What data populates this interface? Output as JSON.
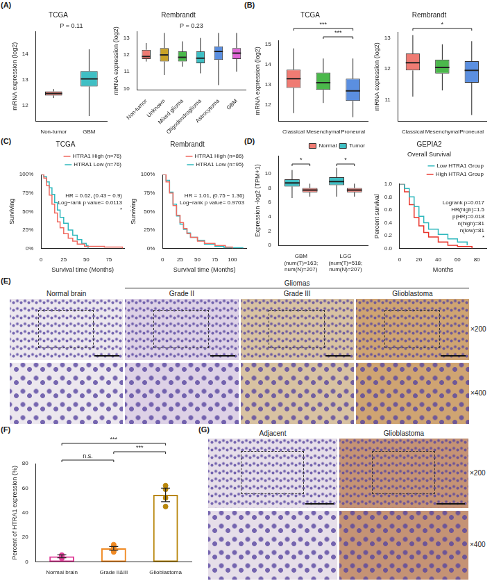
{
  "panel_labels": [
    "(A)",
    "(B)",
    "(C)",
    "(D)",
    "(E)",
    "(F)",
    "(G)"
  ],
  "chart_data": [
    {
      "type": "boxplot",
      "title": "TCGA",
      "y_label": "mRNA expression (log2)",
      "categories": [
        "Non-tumor",
        "GBM"
      ],
      "colors": [
        "#ef7b73",
        "#3fbfc4"
      ],
      "boxes": [
        {
          "min": 12.3,
          "q1": 12.4,
          "median": 12.48,
          "q3": 12.56,
          "max": 12.65
        },
        {
          "min": 11.6,
          "q1": 12.75,
          "median": 13.05,
          "q3": 13.35,
          "max": 14.2
        }
      ],
      "ylim": [
        11.4,
        14.9
      ],
      "yticks": [
        12,
        13,
        14
      ],
      "grid": false,
      "annotations": [
        "P = 0.11"
      ]
    },
    {
      "type": "boxplot",
      "title": "Rembrandt",
      "y_label": "mRNA expression (log2)",
      "categories": [
        "Non-tumor",
        "Unknown",
        "Mixed glioma",
        "Oligodendroglioma",
        "Astrocytoma",
        "GBM"
      ],
      "colors": [
        "#ef7b73",
        "#c9a227",
        "#4bb84b",
        "#3fbfc4",
        "#5b8fe0",
        "#e066d6"
      ],
      "boxes": [
        {
          "min": 11.6,
          "q1": 11.75,
          "median": 11.9,
          "q3": 12.3,
          "max": 12.7
        },
        {
          "min": 10.8,
          "q1": 11.6,
          "median": 12.0,
          "q3": 12.4,
          "max": 13.3
        },
        {
          "min": 11.3,
          "q1": 11.6,
          "median": 11.85,
          "q3": 12.2,
          "max": 12.8
        },
        {
          "min": 10.9,
          "q1": 11.5,
          "median": 11.8,
          "q3": 12.2,
          "max": 13.0
        },
        {
          "min": 10.2,
          "q1": 11.7,
          "median": 12.2,
          "q3": 12.5,
          "max": 13.3
        },
        {
          "min": 11.0,
          "q1": 11.75,
          "median": 12.1,
          "q3": 12.4,
          "max": 13.3
        }
      ],
      "ylim": [
        9.9,
        13.4
      ],
      "yticks": [
        10,
        11,
        12,
        13
      ],
      "grid": false,
      "annotations": [
        "P = 0.23"
      ]
    },
    {
      "type": "boxplot",
      "title": "TCGA",
      "y_label": "mRNA expression (log2)",
      "categories": [
        "Classical",
        "Mesenchymal",
        "Proneural"
      ],
      "colors": [
        "#ef7b73",
        "#4bb84b",
        "#5b8fe0"
      ],
      "boxes": [
        {
          "min": 11.6,
          "q1": 12.85,
          "median": 13.3,
          "q3": 13.75,
          "max": 14.8
        },
        {
          "min": 12.1,
          "q1": 12.75,
          "median": 13.1,
          "q3": 13.6,
          "max": 14.3
        },
        {
          "min": 11.4,
          "q1": 12.2,
          "median": 12.7,
          "q3": 13.3,
          "max": 14.3
        }
      ],
      "ylim": [
        11.2,
        15.2
      ],
      "yticks": [
        12,
        13,
        14,
        15
      ],
      "grid": false,
      "brackets": [
        {
          "text": "***",
          "from": "Mesenchymal",
          "to": "Proneural"
        },
        {
          "text": "***",
          "from": "Classical",
          "to": "Proneural"
        }
      ]
    },
    {
      "type": "boxplot",
      "title": "Rembrandt",
      "y_label": "mRNA expression (log2)",
      "categories": [
        "Classical",
        "Mesenchymal",
        "Proneural"
      ],
      "colors": [
        "#ef7b73",
        "#4bb84b",
        "#5b8fe0"
      ],
      "boxes": [
        {
          "min": 11.1,
          "q1": 11.95,
          "median": 12.2,
          "q3": 12.5,
          "max": 13.1
        },
        {
          "min": 11.3,
          "q1": 11.85,
          "median": 12.05,
          "q3": 12.3,
          "max": 12.8
        },
        {
          "min": 10.5,
          "q1": 11.55,
          "median": 11.95,
          "q3": 12.25,
          "max": 12.9
        }
      ],
      "ylim": [
        10.3,
        13.2
      ],
      "yticks": [
        11,
        12,
        13
      ],
      "grid": false,
      "brackets": [
        {
          "text": "*",
          "from": "Classical",
          "to": "Proneural"
        }
      ]
    },
    {
      "type": "survival",
      "title": "TCGA",
      "x_label": "Survival time (Months)",
      "y_label": "Surviving",
      "series": [
        {
          "name": "HTRA1 High (n=76)",
          "color": "#ef6a60",
          "x": [
            0,
            3,
            6,
            9,
            12,
            15,
            18,
            21,
            25,
            30,
            35,
            40,
            48,
            70,
            90
          ],
          "values": [
            100,
            95,
            85,
            72,
            60,
            48,
            36,
            28,
            20,
            14,
            10,
            6,
            3,
            2,
            0
          ]
        },
        {
          "name": "HTRA1 Low (n=76)",
          "color": "#2fb8bd",
          "x": [
            0,
            3,
            6,
            9,
            12,
            15,
            18,
            21,
            25,
            30,
            35,
            40,
            45,
            50,
            52
          ],
          "values": [
            100,
            97,
            90,
            82,
            73,
            62,
            52,
            42,
            34,
            25,
            18,
            12,
            7,
            4,
            0
          ]
        }
      ],
      "xlim": [
        0,
        92
      ],
      "xticks": [
        0,
        25,
        50,
        75
      ],
      "ylim": [
        0,
        100
      ],
      "yticks": [
        {
          "value": 0,
          "label": "0%"
        },
        {
          "value": 25,
          "label": "25%"
        },
        {
          "value": 50,
          "label": "50%"
        },
        {
          "value": 75,
          "label": "75%"
        },
        {
          "value": 100,
          "label": "100%"
        }
      ],
      "grid": false,
      "legend": "top-right",
      "annotations": [
        "HR = 0.62, (0.43 − 0.9)",
        "Log−rank p value= 0.0113",
        "*"
      ]
    },
    {
      "type": "survival",
      "title": "Rembrandt",
      "x_label": "Survival time (Months)",
      "y_label": "Surviving",
      "series": [
        {
          "name": "HTRA1 High (n=86)",
          "color": "#ef6a60",
          "x": [
            0,
            5,
            10,
            15,
            20,
            25,
            30,
            35,
            40,
            50,
            60,
            75,
            90,
            100
          ],
          "values": [
            100,
            90,
            75,
            58,
            45,
            35,
            27,
            20,
            15,
            10,
            7,
            4,
            2,
            0
          ]
        },
        {
          "name": "HTRA1 Low (n=95)",
          "color": "#2fb8bd",
          "x": [
            0,
            5,
            10,
            15,
            20,
            25,
            30,
            35,
            40,
            50,
            60,
            75,
            88,
            115
          ],
          "values": [
            100,
            92,
            76,
            60,
            44,
            33,
            26,
            21,
            15,
            11,
            6,
            3,
            1,
            0
          ]
        }
      ],
      "xlim": [
        0,
        120
      ],
      "xticks": [
        0,
        25,
        50,
        75,
        100
      ],
      "ylim": [
        0,
        100
      ],
      "yticks": [
        {
          "value": 0,
          "label": "0%"
        },
        {
          "value": 25,
          "label": "25%"
        },
        {
          "value": 50,
          "label": "50%"
        },
        {
          "value": 75,
          "label": "75%"
        },
        {
          "value": 100,
          "label": "100%"
        }
      ],
      "grid": false,
      "legend": "top-right",
      "annotations": [
        "HR = 1.01, (0.75 − 1.36)",
        "Log−rank p value= 0.9703"
      ]
    },
    {
      "type": "boxplot",
      "y_label": "Expression -log2 (TPM+1)",
      "categories": [
        [
          "GBM",
          "(num(T)=163;",
          "num(N)=207)"
        ],
        [
          "LGG",
          "(num(T)=518;",
          "num(N)=207)"
        ]
      ],
      "series": [
        {
          "name": "Tumor",
          "color": "#3fbfc4",
          "boxes": [
            {
              "min": 6.6,
              "q1": 8.2,
              "median": 8.7,
              "q3": 9.2,
              "max": 10.5
            },
            {
              "min": 6.8,
              "q1": 8.4,
              "median": 8.9,
              "q3": 9.5,
              "max": 10.8
            }
          ]
        },
        {
          "name": "Normal",
          "color": "#ef7b73",
          "boxes": [
            {
              "min": 6.8,
              "q1": 7.4,
              "median": 7.7,
              "q3": 8.0,
              "max": 8.6
            },
            {
              "min": 6.8,
              "q1": 7.4,
              "median": 7.7,
              "q3": 8.0,
              "max": 8.6
            }
          ]
        }
      ],
      "ylim": [
        0,
        12.5
      ],
      "yticks": [
        0,
        2,
        4,
        6,
        8,
        10
      ],
      "grid": false,
      "legend": "top-right",
      "brackets": [
        {
          "text": "*",
          "from": "GBM",
          "to": "GBM"
        },
        {
          "text": "*",
          "from": "LGG",
          "to": "LGG"
        }
      ]
    },
    {
      "type": "survival",
      "title": "GEPIA2",
      "subtitle": "Overall Survival",
      "x_label": "Months",
      "y_label": "Percent survival",
      "series": [
        {
          "name": "Low HTRA1 Group",
          "color": "#2fb8bd",
          "x": [
            0,
            5,
            10,
            15,
            20,
            25,
            30,
            40,
            50,
            60,
            70
          ],
          "values": [
            1,
            0.93,
            0.8,
            0.65,
            0.5,
            0.4,
            0.3,
            0.22,
            0.15,
            0.1,
            0.05
          ]
        },
        {
          "name": "High HTRA1 Group",
          "color": "#e8332a",
          "x": [
            0,
            5,
            10,
            15,
            20,
            25,
            30,
            40,
            50,
            60,
            75
          ],
          "values": [
            1,
            0.88,
            0.68,
            0.48,
            0.35,
            0.25,
            0.18,
            0.1,
            0.05,
            0.03,
            0
          ]
        }
      ],
      "xlim": [
        0,
        90
      ],
      "xticks": [
        0,
        20,
        40,
        60,
        80
      ],
      "ylim": [
        0,
        1
      ],
      "yticks": [
        {
          "value": 0,
          "label": "0.0"
        },
        0.2,
        0.4,
        0.6,
        0.8,
        {
          "value": 1,
          "label": "1.0"
        }
      ],
      "grid": false,
      "legend": "top-right",
      "annotations": [
        "Logrank p=0.017",
        "HR(high)=1.5",
        "p(HR)=0.018",
        "n(high)=81",
        "n(low)=81",
        "*"
      ]
    },
    {
      "type": "bar",
      "y_label": "Percent of HTRA1 expression (%)",
      "categories": [
        "Normal brain",
        "Grade II&III",
        "Glioblastoma"
      ],
      "colors": [
        "#e0409a",
        "#f08a24",
        "#b8860b"
      ],
      "values": [
        4.5,
        11,
        54.5
      ],
      "errors": [
        1.2,
        1.5,
        5.5
      ],
      "points": [
        [
          2.8,
          4.5,
          5.5,
          5.2
        ],
        [
          8,
          9,
          10,
          11,
          12,
          13,
          14
        ],
        [
          45,
          52,
          59,
          62
        ]
      ],
      "ylim": [
        0,
        80
      ],
      "yticks": [
        0,
        20,
        40,
        60,
        80
      ],
      "grid": false,
      "brackets": [
        {
          "text": "n.s.",
          "from": "Normal brain",
          "to": "Grade II&III"
        },
        {
          "text": "***",
          "from": "Grade II&III",
          "to": "Glioblastoma"
        },
        {
          "text": "***",
          "from": "Normal brain",
          "to": "Glioblastoma"
        }
      ]
    }
  ],
  "images": [
    {
      "columns": [
        "Normal brain",
        "Grade II",
        "Grade III",
        "Glioblastoma"
      ],
      "group": {
        "label": "Gliomas",
        "from": "Grade II",
        "to": "Glioblastoma"
      },
      "magnifications": [
        "×200",
        "×400"
      ]
    },
    {
      "columns": [
        "Adjacent",
        "Glioblastoma"
      ],
      "magnifications": [
        "×200",
        "×400"
      ]
    }
  ]
}
